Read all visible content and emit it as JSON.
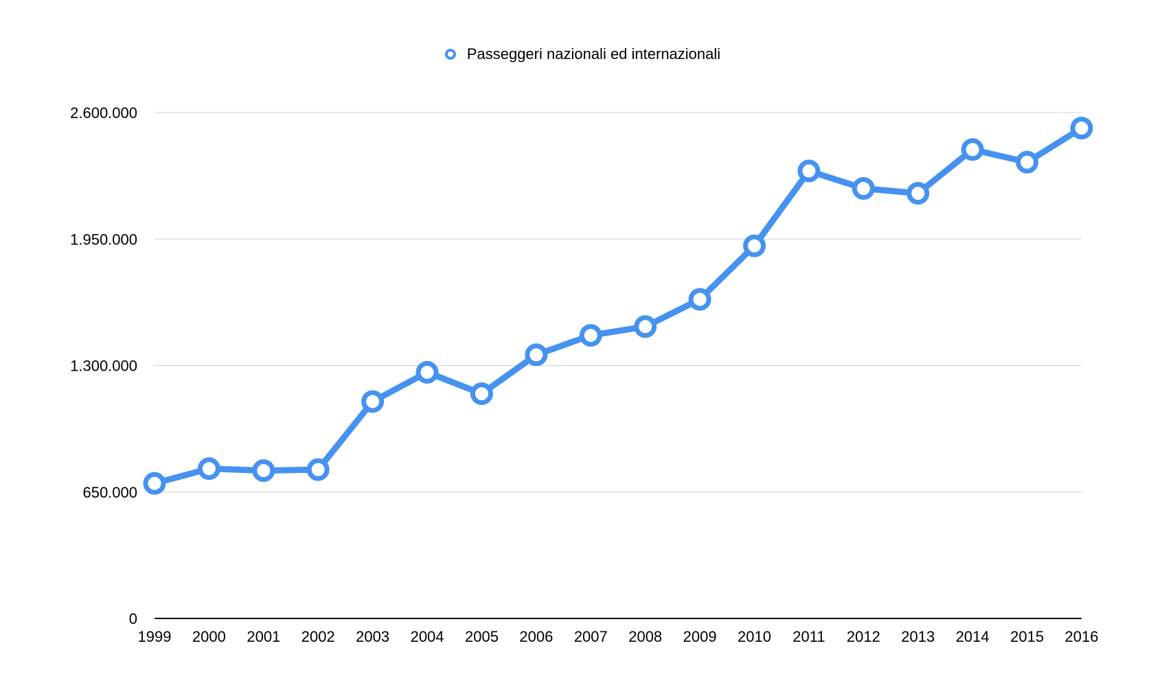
{
  "chart_data": {
    "type": "line",
    "title": "",
    "xlabel": "",
    "ylabel": "",
    "categories": [
      "1999",
      "2000",
      "2001",
      "2002",
      "2003",
      "2004",
      "2005",
      "2006",
      "2007",
      "2008",
      "2009",
      "2010",
      "2011",
      "2012",
      "2013",
      "2014",
      "2015",
      "2016"
    ],
    "series": [
      {
        "name": "Passeggeri nazionali ed internazionali",
        "color": "#4592f0",
        "values": [
          694000,
          770000,
          760000,
          765000,
          1115000,
          1265000,
          1155000,
          1355000,
          1455000,
          1500000,
          1640000,
          1915000,
          2300000,
          2210000,
          2185000,
          2410000,
          2345000,
          2520000
        ]
      }
    ],
    "ylim": [
      0,
      2600000
    ],
    "y_ticks": [
      0,
      650000,
      1300000,
      1950000,
      2600000
    ],
    "y_tick_labels": [
      "0",
      "650.000",
      "1.300.000",
      "1.950.000",
      "2.600.000"
    ],
    "grid": true,
    "legend_position": "top-center",
    "colors": {
      "series": "#4592f0",
      "grid": "#d0d0d0",
      "axis": "#000000"
    }
  }
}
